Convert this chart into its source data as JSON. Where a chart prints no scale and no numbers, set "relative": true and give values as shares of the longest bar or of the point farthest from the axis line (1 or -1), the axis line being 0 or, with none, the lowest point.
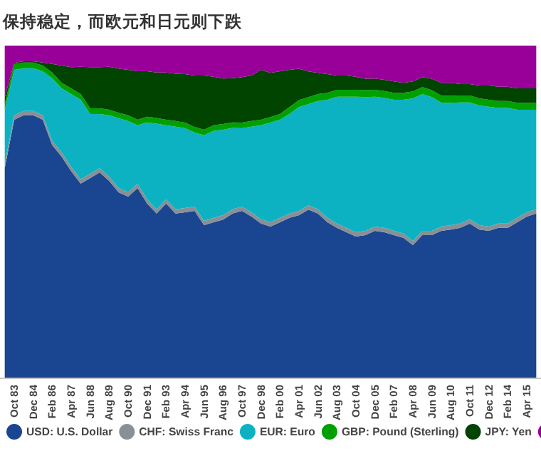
{
  "chart_data": {
    "type": "area",
    "title": "保持稳定，而欧元和日元则下跌",
    "relative": true,
    "stacked": true,
    "legend": "bottom",
    "categories": [
      null,
      "Oct 83",
      null,
      "Dec 84",
      null,
      "Feb 86",
      null,
      "Apr 87",
      null,
      "Jun 88",
      null,
      "Aug 89",
      null,
      "Oct 90",
      null,
      "Dec 91",
      null,
      "Feb 93",
      null,
      "Apr 94",
      null,
      "Jun 95",
      null,
      "Aug 96",
      null,
      "Oct 97",
      null,
      "Dec 98",
      null,
      "Feb 00",
      null,
      "Apr 01",
      null,
      "Jun 02",
      null,
      "Aug 03",
      null,
      "Oct 04",
      null,
      "Dec 05",
      null,
      "Feb 07",
      null,
      "Apr 08",
      null,
      "Jun 09",
      null,
      "Aug 10",
      null,
      "Oct 11",
      null,
      "Dec 12",
      null,
      "Feb 14",
      null,
      "Apr 15",
      null
    ],
    "series": [
      {
        "name": "USD: U.S. Dollar",
        "color": "#1a4590",
        "values": [
          0.631,
          0.777,
          0.79,
          0.79,
          0.777,
          0.7,
          0.665,
          0.622,
          0.584,
          0.601,
          0.618,
          0.592,
          0.558,
          0.545,
          0.571,
          0.524,
          0.494,
          0.524,
          0.494,
          0.498,
          0.502,
          0.459,
          0.468,
          0.476,
          0.494,
          0.502,
          0.485,
          0.464,
          0.455,
          0.468,
          0.481,
          0.489,
          0.506,
          0.494,
          0.468,
          0.451,
          0.438,
          0.425,
          0.429,
          0.442,
          0.438,
          0.429,
          0.421,
          0.399,
          0.429,
          0.429,
          0.442,
          0.446,
          0.451,
          0.464,
          0.446,
          0.442,
          0.451,
          0.451,
          0.468,
          0.485,
          0.494
        ]
      },
      {
        "name": "CHF: Swiss Franc",
        "color": "#8a8f96",
        "values": [
          0.013,
          0.013,
          0.013,
          0.013,
          0.013,
          0.013,
          0.013,
          0.013,
          0.013,
          0.013,
          0.013,
          0.013,
          0.013,
          0.013,
          0.013,
          0.013,
          0.013,
          0.013,
          0.013,
          0.013,
          0.013,
          0.013,
          0.013,
          0.013,
          0.013,
          0.013,
          0.013,
          0.013,
          0.013,
          0.013,
          0.013,
          0.013,
          0.013,
          0.013,
          0.013,
          0.013,
          0.013,
          0.013,
          0.013,
          0.013,
          0.013,
          0.013,
          0.013,
          0.013,
          0.013,
          0.013,
          0.013,
          0.013,
          0.013,
          0.013,
          0.013,
          0.013,
          0.013,
          0.013,
          0.013,
          0.013,
          0.013
        ]
      },
      {
        "name": "EUR: Euro",
        "color": "#0db2c2",
        "values": [
          0.163,
          0.137,
          0.129,
          0.129,
          0.133,
          0.189,
          0.193,
          0.219,
          0.24,
          0.18,
          0.163,
          0.185,
          0.21,
          0.215,
          0.176,
          0.232,
          0.258,
          0.223,
          0.249,
          0.24,
          0.223,
          0.258,
          0.262,
          0.258,
          0.245,
          0.236,
          0.258,
          0.283,
          0.3,
          0.296,
          0.3,
          0.313,
          0.305,
          0.326,
          0.356,
          0.382,
          0.395,
          0.408,
          0.403,
          0.391,
          0.391,
          0.395,
          0.403,
          0.429,
          0.412,
          0.403,
          0.373,
          0.369,
          0.365,
          0.352,
          0.361,
          0.361,
          0.348,
          0.348,
          0.326,
          0.309,
          0.3
        ]
      },
      {
        "name": "GBP: Pound (Sterling)",
        "color": "#00a000",
        "values": [
          0.017,
          0.017,
          0.017,
          0.017,
          0.017,
          0.017,
          0.017,
          0.017,
          0.017,
          0.017,
          0.017,
          0.017,
          0.017,
          0.017,
          0.017,
          0.017,
          0.017,
          0.017,
          0.017,
          0.017,
          0.017,
          0.017,
          0.017,
          0.017,
          0.017,
          0.017,
          0.017,
          0.017,
          0.017,
          0.017,
          0.021,
          0.021,
          0.021,
          0.021,
          0.021,
          0.021,
          0.021,
          0.021,
          0.021,
          0.021,
          0.021,
          0.021,
          0.021,
          0.021,
          0.021,
          0.021,
          0.021,
          0.021,
          0.021,
          0.021,
          0.021,
          0.021,
          0.021,
          0.021,
          0.021,
          0.021,
          0.021
        ]
      },
      {
        "name": "JPY: Yen",
        "color": "#004400",
        "values": [
          0.021,
          0.004,
          0.004,
          0.004,
          0.009,
          0.026,
          0.052,
          0.064,
          0.082,
          0.124,
          0.124,
          0.129,
          0.133,
          0.137,
          0.146,
          0.137,
          0.137,
          0.142,
          0.142,
          0.146,
          0.155,
          0.163,
          0.146,
          0.137,
          0.133,
          0.137,
          0.137,
          0.15,
          0.133,
          0.129,
          0.112,
          0.094,
          0.077,
          0.064,
          0.056,
          0.043,
          0.043,
          0.039,
          0.034,
          0.034,
          0.034,
          0.034,
          0.03,
          0.03,
          0.03,
          0.034,
          0.039,
          0.039,
          0.034,
          0.034,
          0.039,
          0.043,
          0.043,
          0.043,
          0.043,
          0.043,
          0.043
        ]
      },
      {
        "color": "#990099",
        "values": [
          0.155,
          0.052,
          0.047,
          0.047,
          0.051,
          0.055,
          0.06,
          0.065,
          0.064,
          0.065,
          0.065,
          0.064,
          0.069,
          0.073,
          0.077,
          0.077,
          0.081,
          0.081,
          0.085,
          0.086,
          0.09,
          0.09,
          0.094,
          0.099,
          0.098,
          0.095,
          0.09,
          0.073,
          0.082,
          0.077,
          0.073,
          0.07,
          0.078,
          0.082,
          0.086,
          0.09,
          0.09,
          0.094,
          0.1,
          0.099,
          0.103,
          0.108,
          0.112,
          0.108,
          0.095,
          0.1,
          0.112,
          0.112,
          0.116,
          0.116,
          0.12,
          0.12,
          0.124,
          0.124,
          0.129,
          0.129,
          0.129
        ]
      }
    ]
  }
}
